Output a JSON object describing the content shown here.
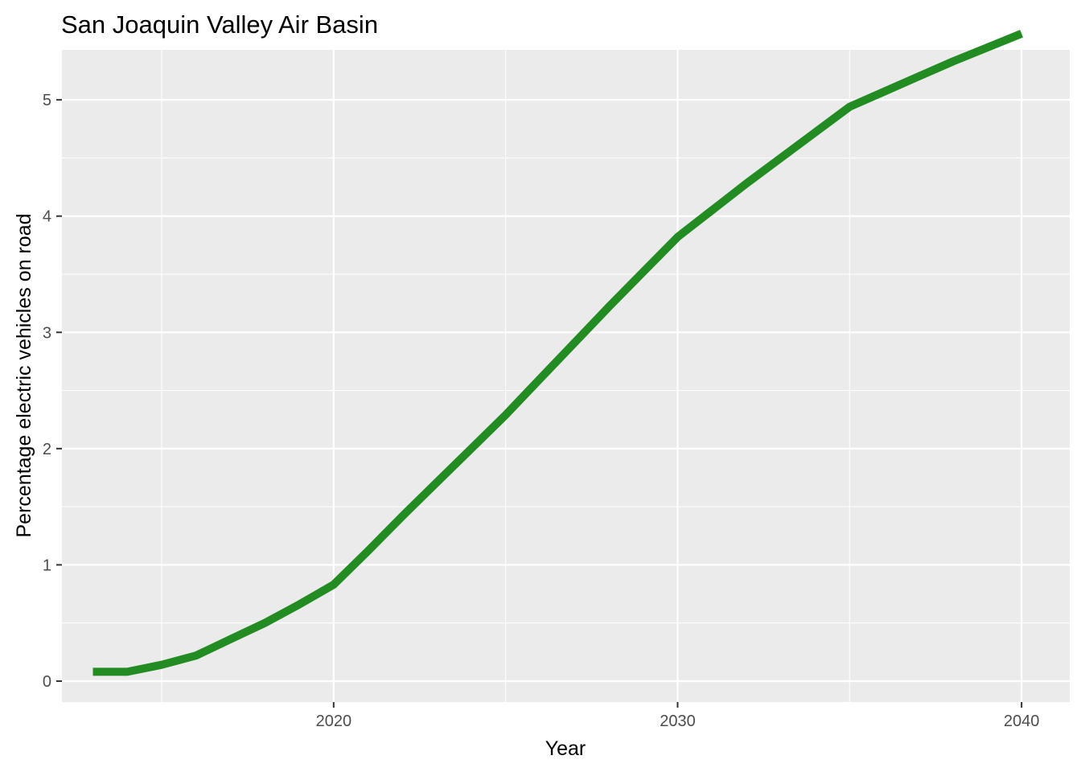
{
  "chart_data": {
    "type": "line",
    "title": "San Joaquin Valley Air Basin",
    "xlabel": "Year",
    "ylabel": "Percentage electric vehicles on road",
    "xlim": [
      2012.1,
      2041.4
    ],
    "ylim": [
      -0.18,
      5.43
    ],
    "x_ticks": [
      2020,
      2030,
      2040
    ],
    "x_tick_labels": [
      "2020",
      "2030",
      "2040"
    ],
    "y_ticks": [
      0,
      1,
      2,
      3,
      4,
      5
    ],
    "y_tick_labels": [
      "0",
      "1",
      "2",
      "3",
      "4",
      "5"
    ],
    "grid": true,
    "legend": "none",
    "colors": {
      "line": "#228B22",
      "panel": "#EBEBEB",
      "grid": "#FFFFFF"
    },
    "series": [
      {
        "x": [
          2013,
          2014,
          2015,
          2016,
          2017,
          2018,
          2019,
          2020,
          2021,
          2022,
          2023,
          2024,
          2025,
          2026,
          2027,
          2028,
          2029,
          2030,
          2031,
          2032,
          2033,
          2034,
          2035,
          2036,
          2037,
          2038,
          2039,
          2040
        ],
        "y": [
          0.08,
          0.08,
          0.14,
          0.22,
          0.36,
          0.5,
          0.66,
          0.83,
          1.12,
          1.42,
          1.71,
          2.0,
          2.29,
          2.6,
          2.91,
          3.22,
          3.52,
          3.82,
          4.05,
          4.28,
          4.5,
          4.72,
          4.94,
          5.07,
          5.2,
          5.33,
          5.45,
          5.57
        ]
      }
    ]
  }
}
